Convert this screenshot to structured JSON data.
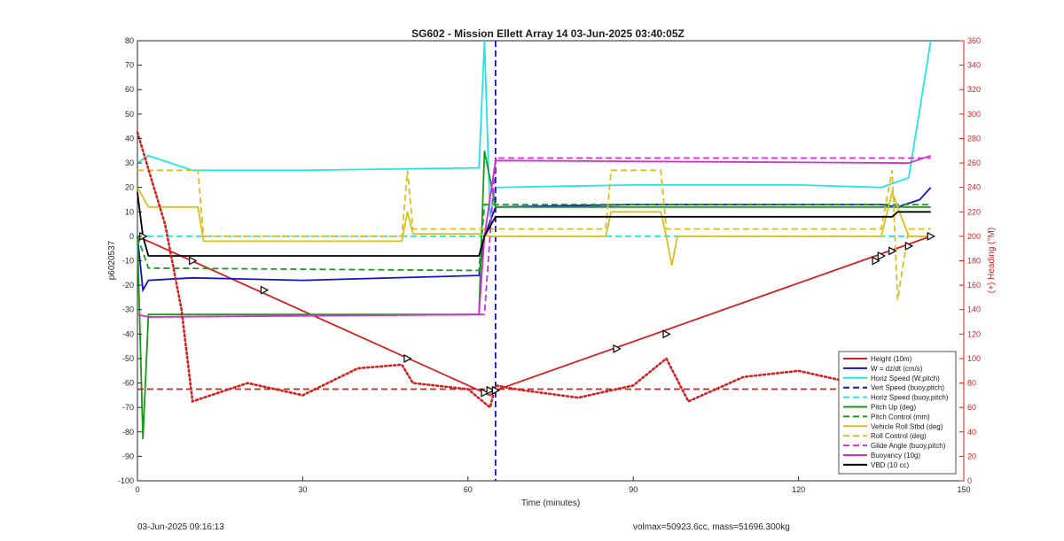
{
  "chart_data": {
    "type": "line",
    "title": "SG602 - Mission Ellett Array 14 03-Jun-2025 03:40:05Z",
    "xlabel": "Time (minutes)",
    "ylabel": "p6020537",
    "y2label": "(+) Heading (°M)",
    "xlim": [
      0,
      150
    ],
    "ylim": [
      -100,
      80
    ],
    "y2lim": [
      0,
      360
    ],
    "xticks": [
      "0",
      "30",
      "60",
      "90",
      "120",
      "150"
    ],
    "yticks": [
      "80",
      "70",
      "60",
      "50",
      "40",
      "30",
      "20",
      "10",
      "0",
      "-10",
      "-20",
      "-30",
      "-40",
      "-50",
      "-60",
      "-70",
      "-80",
      "-90",
      "-100"
    ],
    "y2ticks": [
      "360",
      "340",
      "320",
      "300",
      "280",
      "260",
      "240",
      "220",
      "200",
      "180",
      "160",
      "140",
      "120",
      "100",
      "80",
      "60",
      "40",
      "20",
      "0"
    ],
    "grid": false,
    "legend_position": "bottom-right",
    "footer_left": "03-Jun-2025 09:16:13",
    "footer_right": "volmax=50923.6cc, mass=51696.300kg",
    "series": [
      {
        "name": "Height (10m)",
        "color": "#d62020",
        "style": "solid",
        "x": [
          0,
          64,
          65,
          144
        ],
        "y": [
          0,
          -65,
          -63,
          0
        ]
      },
      {
        "name": "W = dz/dt (cm/s)",
        "color": "#1212c8",
        "style": "solid",
        "x": [
          0,
          1,
          2,
          10,
          30,
          62,
          63,
          65,
          90,
          120,
          135,
          138,
          142,
          144
        ],
        "y": [
          0,
          -22,
          -18,
          -17,
          -18,
          -16,
          0,
          12,
          13,
          13,
          13,
          12,
          15,
          20
        ]
      },
      {
        "name": "Horiz Speed (W,pitch)",
        "color": "#22e5e5",
        "style": "solid",
        "x": [
          0,
          2,
          10,
          30,
          62,
          63,
          64,
          65,
          90,
          120,
          135,
          140,
          144
        ],
        "y": [
          30,
          33,
          27,
          27,
          28,
          80,
          8,
          20,
          21,
          21,
          20,
          24,
          80
        ]
      },
      {
        "name": "Vert Speed (buoy,pitch)",
        "color": "#1212c8",
        "style": "dashed",
        "x": [
          65,
          65
        ],
        "y": [
          80,
          -100
        ]
      },
      {
        "name": "Horiz Speed (buoy,pitch)",
        "color": "#22e5e5",
        "style": "dashed",
        "x": [
          0,
          62,
          65,
          144
        ],
        "y": [
          0,
          0,
          0,
          0
        ]
      },
      {
        "name": "Pitch Up (deg)",
        "color": "#1a9a1a",
        "style": "solid",
        "x": [
          0,
          1,
          2,
          10,
          62,
          63,
          65,
          144
        ],
        "y": [
          0,
          -83,
          -32,
          -32,
          -32,
          35,
          12,
          12
        ]
      },
      {
        "name": "Pitch Control (mm)",
        "color": "#1a9a1a",
        "style": "dashed",
        "x": [
          0,
          2,
          62,
          63,
          144
        ],
        "y": [
          0,
          -13,
          -14,
          13,
          13
        ]
      },
      {
        "name": "Vehicle Roll Stbd (deg)",
        "color": "#d8c020",
        "style": "solid",
        "x": [
          0,
          2,
          11,
          12,
          48,
          49,
          50,
          62,
          64,
          85,
          86,
          90,
          95,
          96,
          97,
          98,
          135,
          137,
          140,
          144
        ],
        "y": [
          20,
          12,
          12,
          -2,
          -2,
          10,
          1,
          1,
          0,
          0,
          10,
          10,
          10,
          0,
          -12,
          0,
          0,
          18,
          0,
          0
        ]
      },
      {
        "name": "Roll Control (deg)",
        "color": "#d8c020",
        "style": "dashed",
        "x": [
          0,
          2,
          11,
          12,
          48,
          49,
          50,
          62,
          64,
          85,
          86,
          90,
          95,
          96,
          97,
          98,
          135,
          137,
          138,
          140,
          144
        ],
        "y": [
          27,
          27,
          27,
          0,
          0,
          27,
          3,
          3,
          3,
          3,
          27,
          27,
          27,
          3,
          3,
          3,
          3,
          27,
          -26,
          3,
          3
        ]
      },
      {
        "name": "Glide Angle (buoy,pitch)",
        "color": "#d230d2",
        "style": "dashed",
        "x": [
          0,
          2,
          62,
          63,
          65,
          144
        ],
        "y": [
          -32,
          -33,
          -32,
          -32,
          32,
          32
        ]
      },
      {
        "name": "Buoyancy (10g)",
        "color": "#d230d2",
        "style": "solid",
        "x": [
          0,
          2,
          62,
          63,
          65,
          140,
          144
        ],
        "y": [
          -32,
          -33,
          -32,
          0,
          31,
          30,
          33
        ]
      },
      {
        "name": "VBD (10 cc)",
        "color": "#000000",
        "style": "solid",
        "x": [
          0,
          1,
          2,
          62,
          63,
          65,
          66,
          137,
          138,
          144
        ],
        "y": [
          18,
          0,
          -8,
          -8,
          0,
          8,
          8,
          8,
          10,
          10
        ]
      },
      {
        "name": "",
        "axis": "right",
        "color": "#d62020",
        "style": "dotted",
        "x": [
          0,
          2,
          3,
          5,
          8,
          10,
          20,
          30,
          40,
          48,
          50,
          60,
          64,
          65,
          70,
          80,
          90,
          96,
          100,
          110,
          120,
          130,
          135,
          140,
          144
        ],
        "y": [
          285,
          255,
          240,
          210,
          140,
          65,
          80,
          70,
          92,
          95,
          80,
          75,
          60,
          78,
          74,
          68,
          78,
          100,
          65,
          85,
          90,
          80,
          70,
          60,
          50
        ]
      },
      {
        "name": "",
        "axis": "right",
        "color": "#d62020",
        "style": "dashed",
        "x": [
          0,
          144
        ],
        "y": [
          75,
          75
        ]
      }
    ],
    "markers": {
      "type": "triangle",
      "x": [
        1,
        10,
        23,
        49,
        63,
        64,
        65,
        87,
        96,
        134,
        135,
        137,
        140,
        144
      ],
      "y": [
        0,
        -10,
        -22,
        -50,
        -64,
        -63,
        -63,
        -46,
        -40,
        -10,
        -8,
        -6,
        -4,
        0
      ]
    }
  }
}
